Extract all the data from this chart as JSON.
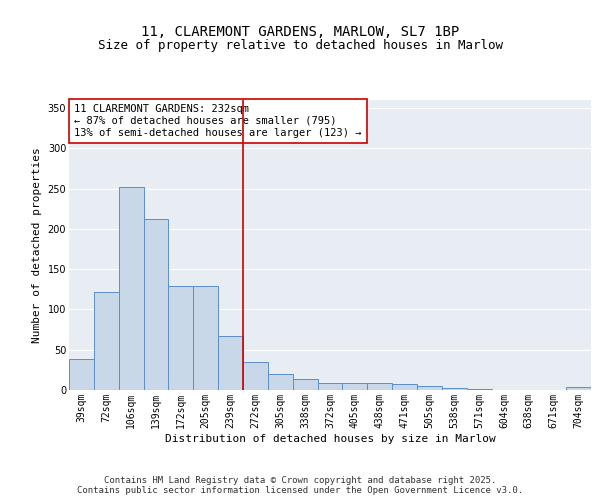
{
  "title1": "11, CLAREMONT GARDENS, MARLOW, SL7 1BP",
  "title2": "Size of property relative to detached houses in Marlow",
  "xlabel": "Distribution of detached houses by size in Marlow",
  "ylabel": "Number of detached properties",
  "categories": [
    "39sqm",
    "72sqm",
    "106sqm",
    "139sqm",
    "172sqm",
    "205sqm",
    "239sqm",
    "272sqm",
    "305sqm",
    "338sqm",
    "372sqm",
    "405sqm",
    "438sqm",
    "471sqm",
    "505sqm",
    "538sqm",
    "571sqm",
    "604sqm",
    "638sqm",
    "671sqm",
    "704sqm"
  ],
  "values": [
    38,
    122,
    252,
    212,
    129,
    129,
    67,
    35,
    20,
    14,
    9,
    9,
    9,
    8,
    5,
    3,
    1,
    0,
    0,
    0,
    4
  ],
  "bar_color": "#c8d8e8",
  "bar_edge_color": "#5b8fc9",
  "vline_x": 6.5,
  "vline_color": "#cc0000",
  "annotation_text": "11 CLAREMONT GARDENS: 232sqm\n← 87% of detached houses are smaller (795)\n13% of semi-detached houses are larger (123) →",
  "annotation_box_color": "#ffffff",
  "annotation_box_edge": "#cc0000",
  "ylim": [
    0,
    360
  ],
  "yticks": [
    0,
    50,
    100,
    150,
    200,
    250,
    300,
    350
  ],
  "background_color": "#e8edf4",
  "footer_text": "Contains HM Land Registry data © Crown copyright and database right 2025.\nContains public sector information licensed under the Open Government Licence v3.0.",
  "title1_fontsize": 10,
  "title2_fontsize": 9,
  "axis_label_fontsize": 8,
  "tick_fontsize": 7,
  "annotation_fontsize": 7.5,
  "footer_fontsize": 6.5
}
